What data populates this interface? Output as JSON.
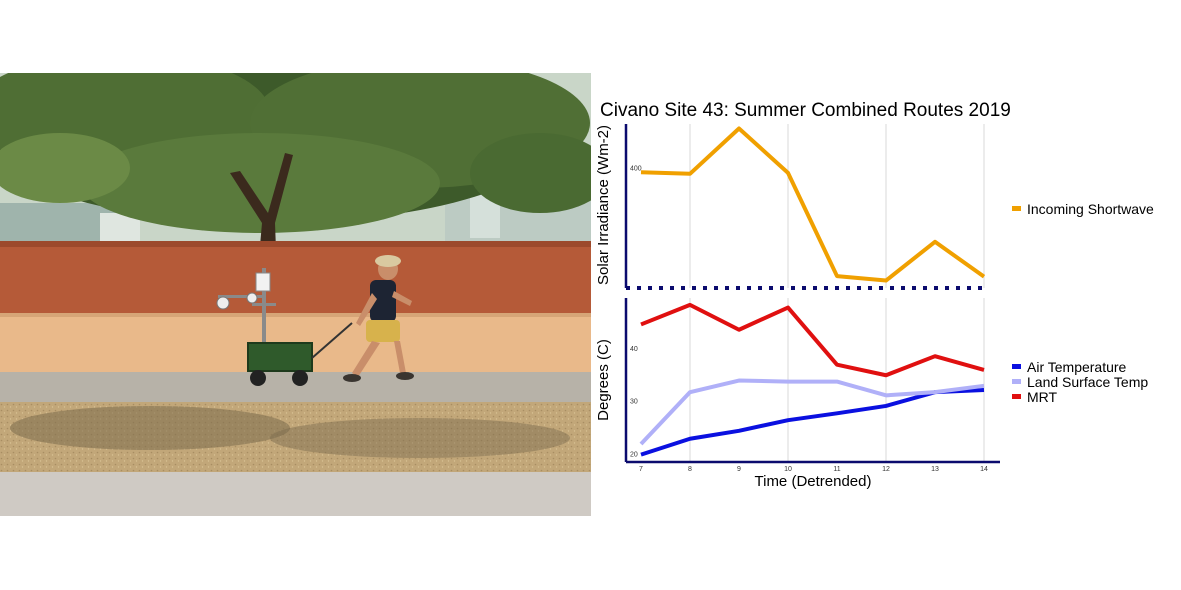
{
  "photo": {
    "description_icon": "photo-researcher-pulling-cart-icon"
  },
  "chart_data": {
    "type": "line",
    "title": "Civano Site 43: Summer Combined Routes 2019",
    "xlabel": "Time (Detrended)",
    "x": [
      7,
      8,
      9,
      10,
      11,
      12,
      13,
      14
    ],
    "xticks": [
      "7",
      "8",
      "9",
      "10",
      "11",
      "12",
      "13",
      "14"
    ],
    "panels": [
      {
        "ylabel": "Solar Irradiance (Wm-2)",
        "yticks": [
          "400"
        ],
        "ylim": [
          0,
          550
        ],
        "series": [
          {
            "name": "Incoming Shortwave",
            "color": "#F0A000",
            "values": [
              388,
              383,
              535,
              386,
              40,
              25,
              155,
              38
            ]
          }
        ]
      },
      {
        "ylabel": "Degrees (C)",
        "yticks": [
          "20",
          "30",
          "40"
        ],
        "ylim": [
          18.6,
          49.6
        ],
        "series": [
          {
            "name": "Air Temperature",
            "color": "#0A10E0",
            "values": [
              20,
              23,
              24.5,
              26.5,
              27.8,
              29.2,
              31.8,
              32.2
            ]
          },
          {
            "name": "Land Surface Temp",
            "color": "#B0B0F8",
            "values": [
              22,
              31.8,
              34,
              33.8,
              33.8,
              31.2,
              31.8,
              33
            ]
          },
          {
            "name": "MRT",
            "color": "#E01010",
            "values": [
              44.6,
              48.3,
              43.6,
              47.8,
              37,
              35,
              38.6,
              36
            ]
          }
        ]
      }
    ],
    "legend": "right",
    "grid": "vertical"
  }
}
